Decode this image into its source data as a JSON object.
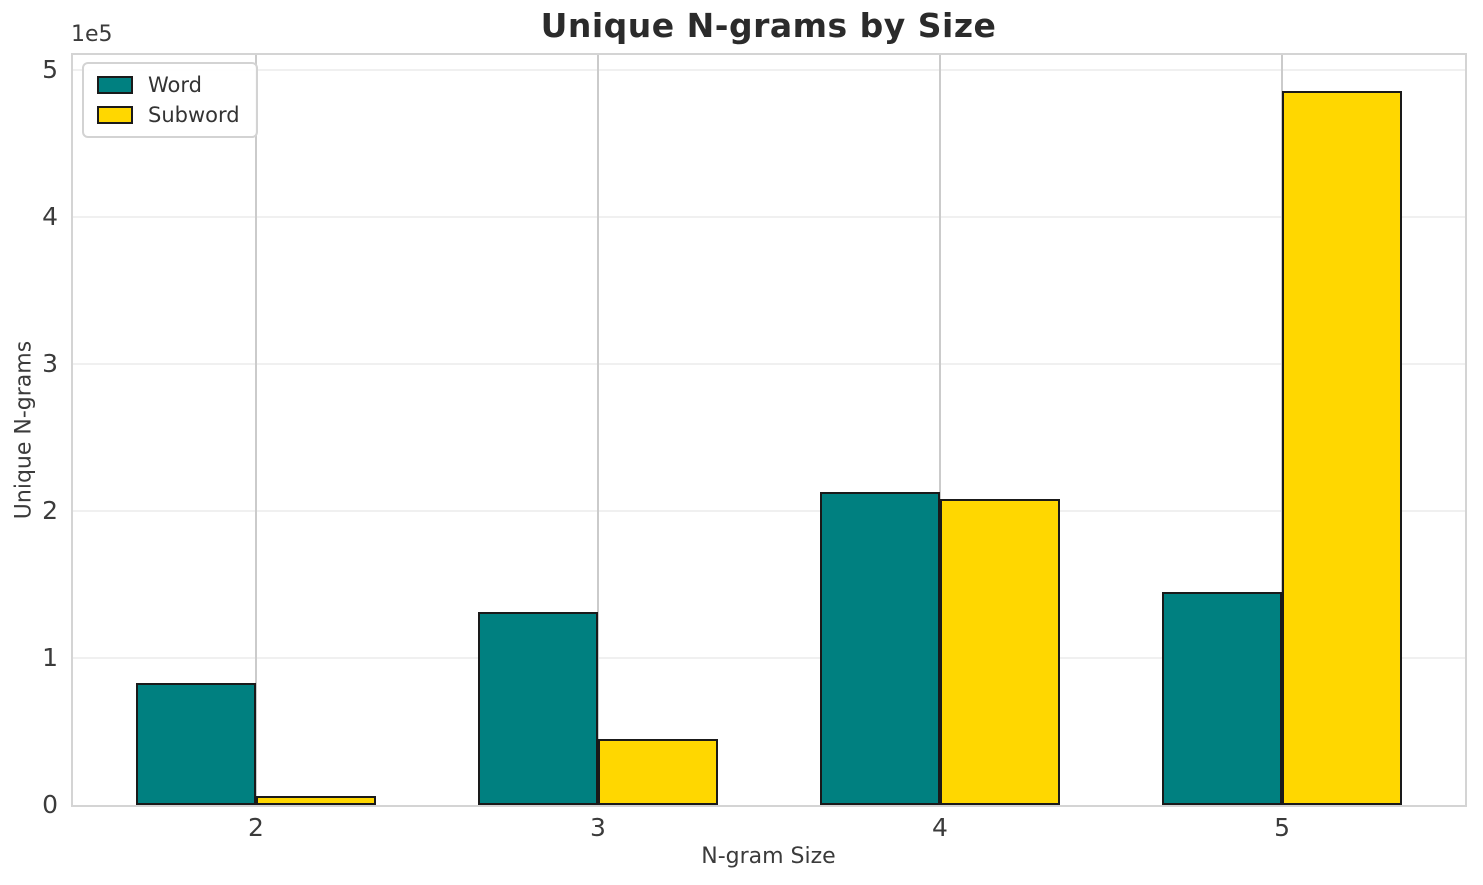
{
  "chart_data": {
    "type": "bar",
    "title": "Unique N-grams by Size",
    "xlabel": "N-gram Size",
    "ylabel": "Unique N-grams",
    "y_axis_offset_label": "1e5",
    "categories": [
      2,
      3,
      4,
      5
    ],
    "series": [
      {
        "name": "Word",
        "color": "#008080",
        "values": [
          83000,
          131000,
          213000,
          145000
        ]
      },
      {
        "name": "Subword",
        "color": "#FFD700",
        "values": [
          6000,
          45000,
          208000,
          486000
        ]
      }
    ],
    "bar_width": 0.35,
    "bar_edge_color": "#1a1a1a",
    "xlim": [
      1.465,
      5.535
    ],
    "ylim": [
      0,
      510300
    ],
    "yticks": [
      0,
      100000,
      200000,
      300000,
      400000,
      500000
    ],
    "ytick_labels": [
      "0",
      "1",
      "2",
      "3",
      "4",
      "5"
    ],
    "xtick_labels": [
      "2",
      "3",
      "4",
      "5"
    ],
    "grid": true,
    "legend": {
      "position": "upper left"
    }
  },
  "colors": {
    "title_text": "#2b2b2b",
    "tick_text": "#3b3b3b",
    "grid_horizontal": "#f0f0f0",
    "grid_vertical": "#cbcbcb",
    "spine": "#d4d4d4",
    "background": "#ffffff"
  }
}
